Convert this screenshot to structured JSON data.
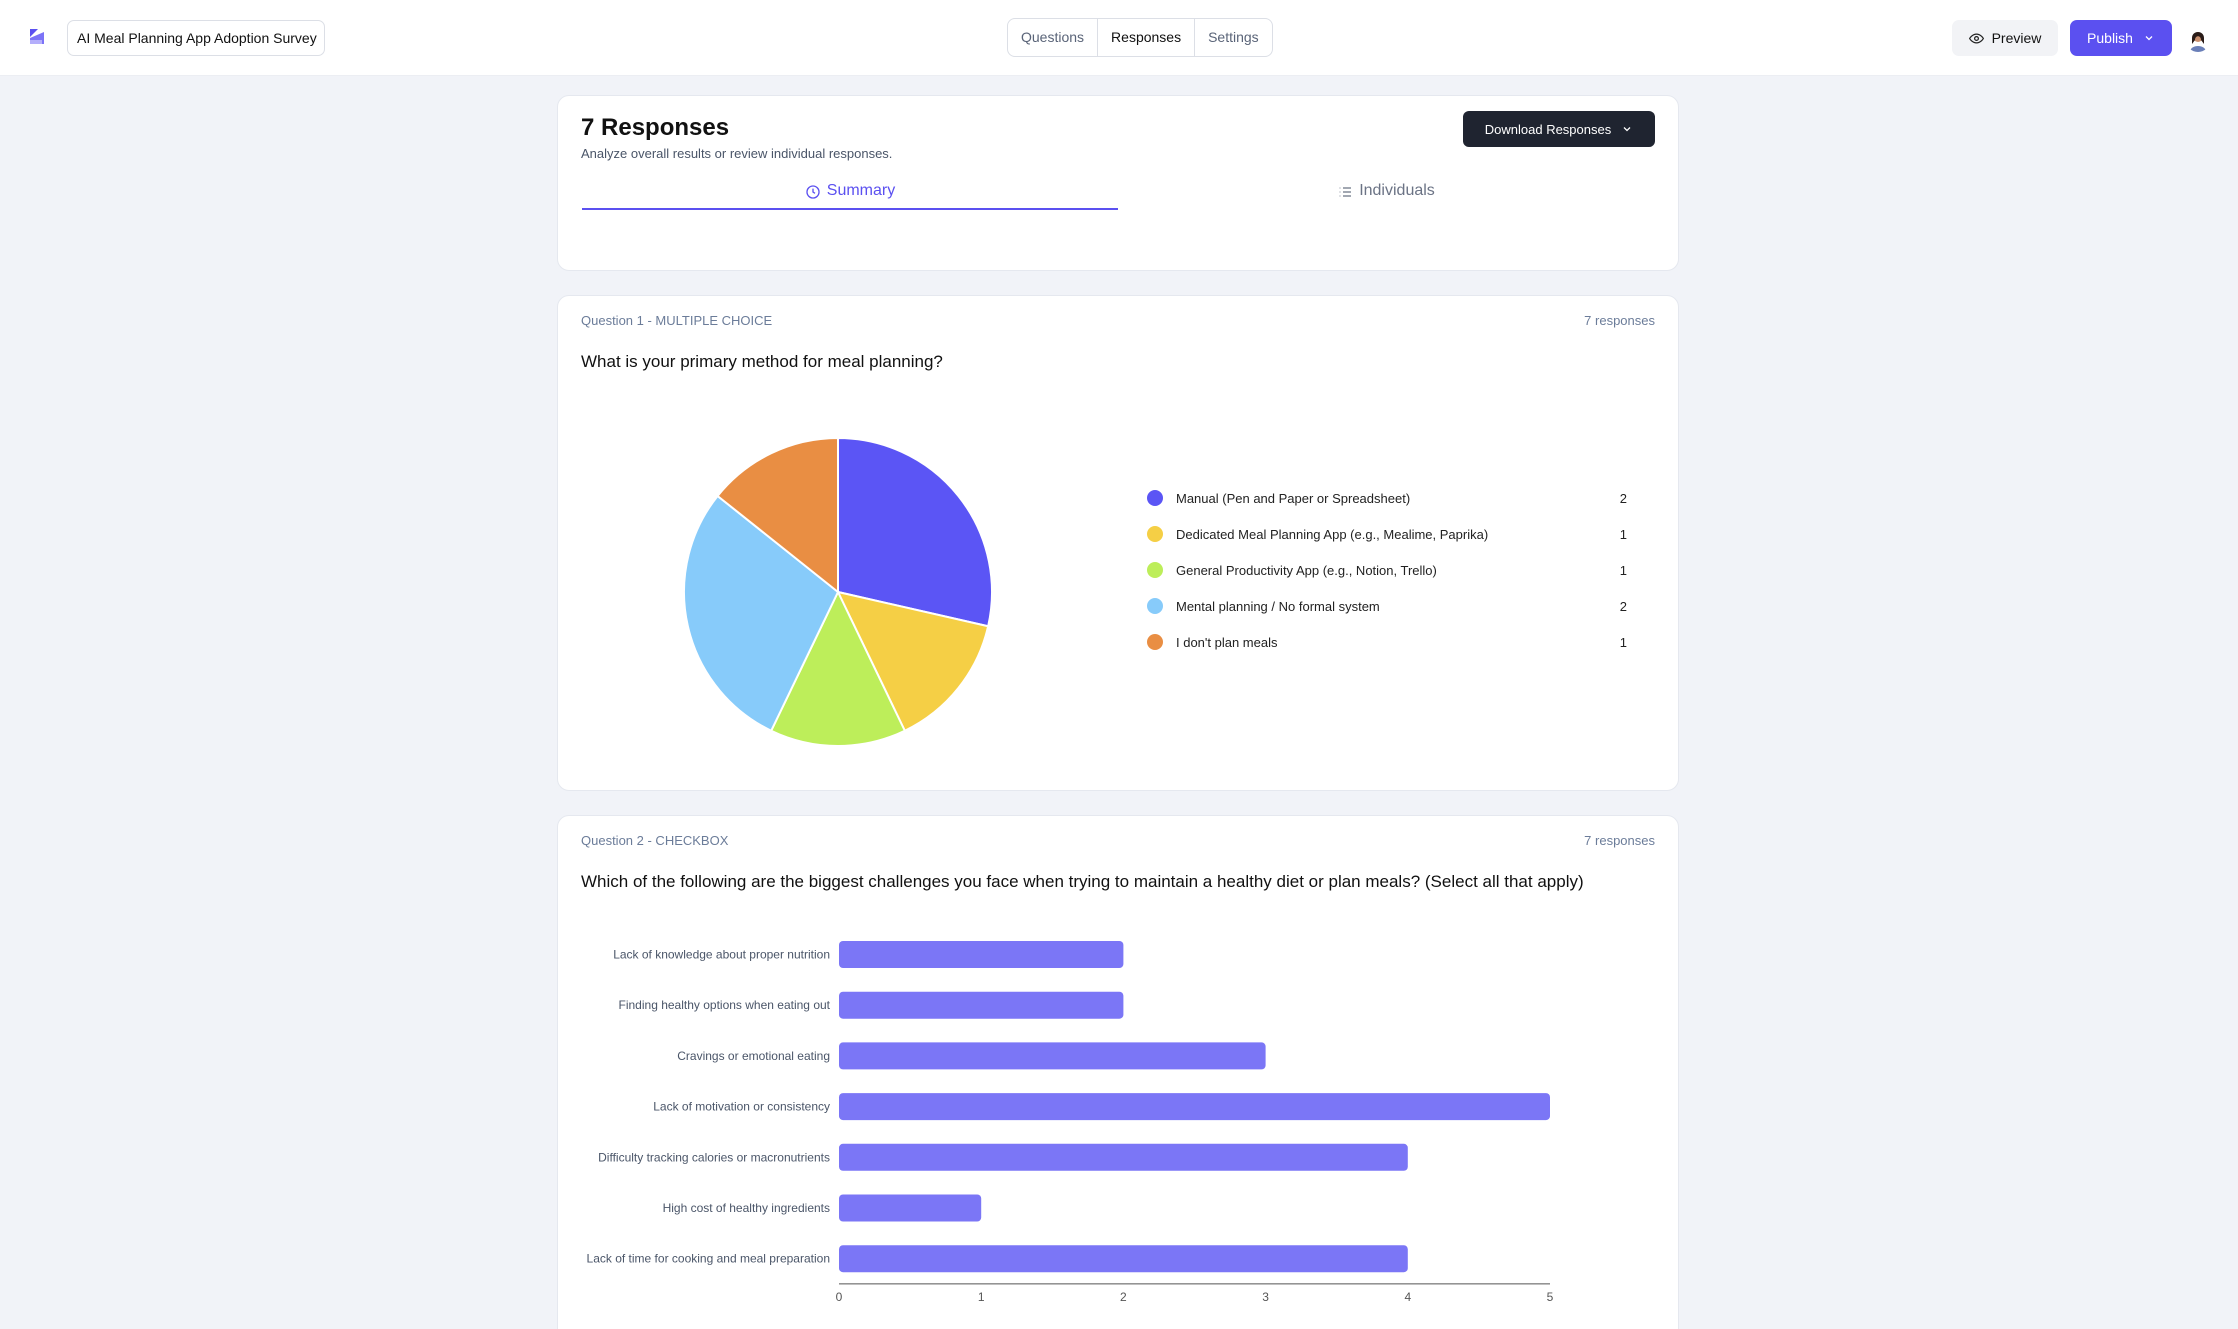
{
  "header": {
    "survey_title": "AI Meal Planning App Adoption Survey",
    "tabs": [
      {
        "label": "Questions"
      },
      {
        "label": "Responses"
      },
      {
        "label": "Settings"
      }
    ],
    "preview_label": "Preview",
    "publish_label": "Publish"
  },
  "responses_card": {
    "title": "7 Responses",
    "subtitle": "Analyze overall results or review individual responses.",
    "download_label": "Download Responses",
    "summary_tab": "Summary",
    "individuals_tab": "Individuals"
  },
  "question1": {
    "label": "Question 1 - MULTIPLE CHOICE",
    "count": "7 responses",
    "text": "What is your primary method for meal planning?",
    "legend": [
      {
        "label": "Manual (Pen and Paper or Spreadsheet)",
        "count": "2"
      },
      {
        "label": "Dedicated Meal Planning App (e.g., Mealime, Paprika)",
        "count": "1"
      },
      {
        "label": "General Productivity App (e.g., Notion, Trello)",
        "count": "1"
      },
      {
        "label": "Mental planning / No formal system",
        "count": "2"
      },
      {
        "label": "I don't plan meals",
        "count": "1"
      }
    ]
  },
  "question2": {
    "label": "Question 2 - CHECKBOX",
    "count": "7 responses",
    "text": "Which of the following are the biggest challenges you face when trying to maintain a healthy diet or plan meals? (Select all that apply)"
  },
  "colors": {
    "accent": "#5b50f0",
    "bar": "#7b76f6",
    "pie": [
      "#5b55f5",
      "#f5cf45",
      "#bdee5a",
      "#87cbfa",
      "#e98e43"
    ]
  },
  "chart_data": [
    {
      "type": "pie",
      "categories": [
        "Manual (Pen and Paper or Spreadsheet)",
        "Dedicated Meal Planning App (e.g., Mealime, Paprika)",
        "General Productivity App (e.g., Notion, Trello)",
        "Mental planning / No formal system",
        "I don't plan meals"
      ],
      "values": [
        2,
        1,
        1,
        2,
        1
      ],
      "title": "",
      "legend": "right"
    },
    {
      "type": "bar",
      "orientation": "horizontal",
      "categories": [
        "Lack of knowledge about proper nutrition",
        "Finding healthy options when eating out",
        "Cravings or emotional eating",
        "Lack of motivation or consistency",
        "Difficulty tracking calories or macronutrients",
        "High cost of healthy ingredients",
        "Lack of time for cooking and meal preparation"
      ],
      "values": [
        2,
        2,
        3,
        5,
        4,
        1,
        4
      ],
      "xlim": [
        0,
        5
      ],
      "xticks": [
        "0",
        "1",
        "2",
        "3",
        "4",
        "5"
      ],
      "title": "",
      "xlabel": "",
      "ylabel": ""
    }
  ]
}
